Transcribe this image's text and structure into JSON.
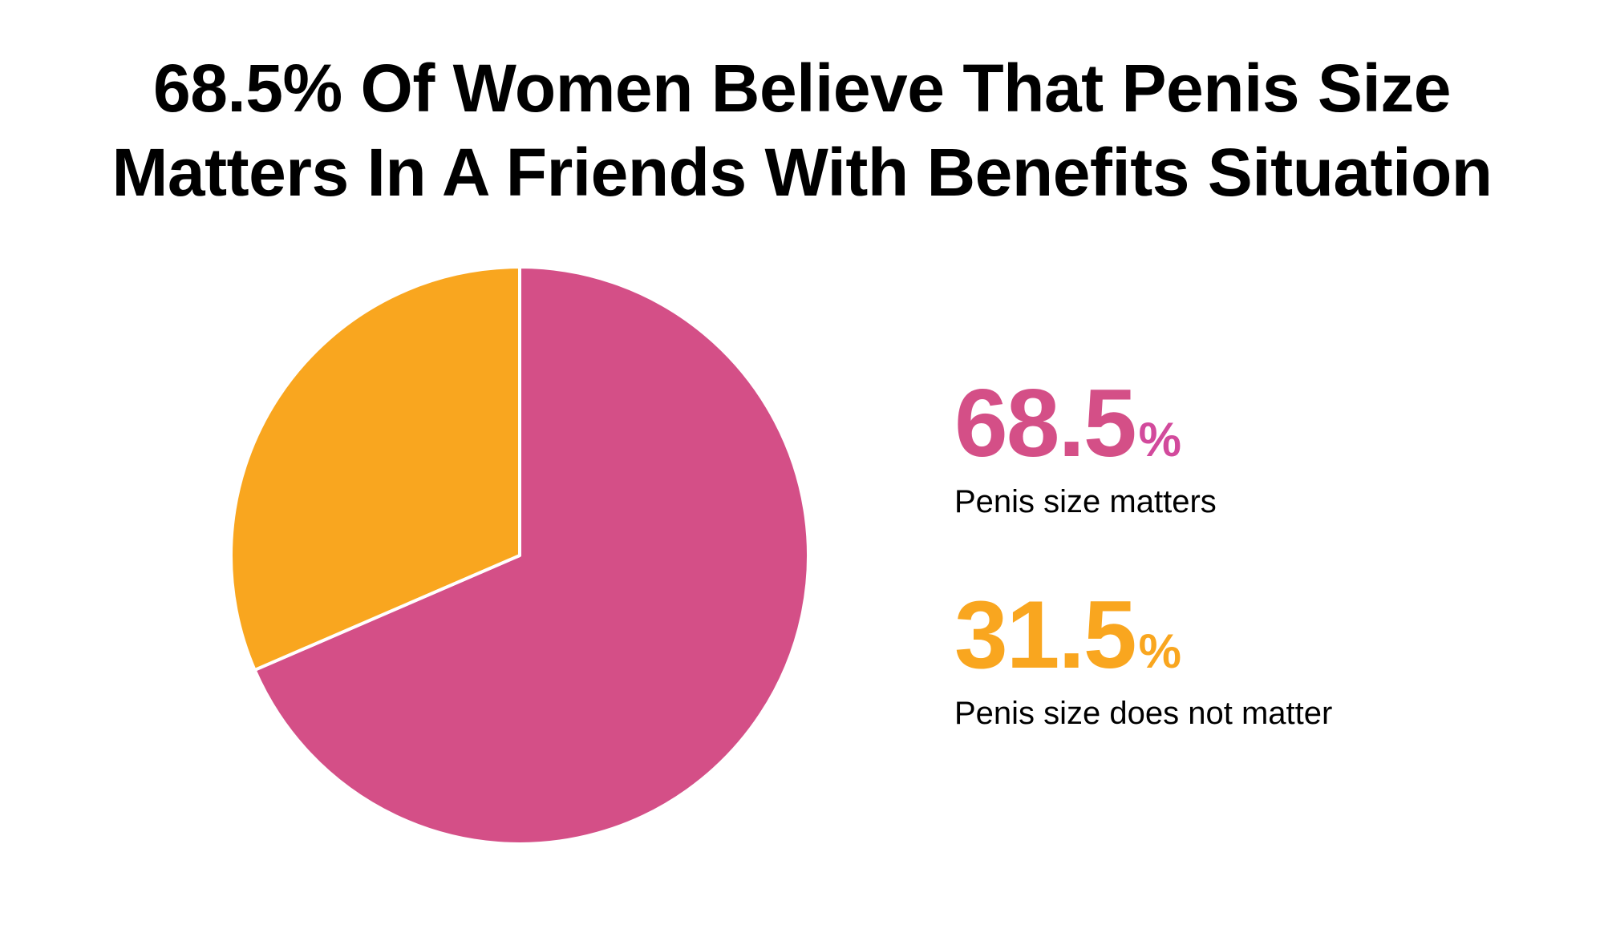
{
  "title": {
    "line1": "68.5% Of Women Believe That Penis Size",
    "line2": "Matters In A Friends With Benefits Situation"
  },
  "stats": [
    {
      "value": "68.5",
      "unit": "%",
      "label": "Penis size matters",
      "color": "#D44F87",
      "unit_color": "#D24A9C"
    },
    {
      "value": "31.5",
      "unit": "%",
      "label": "Penis size does not matter",
      "color": "#F9A61F",
      "unit_color": "#F9A61F"
    }
  ],
  "chart_data": {
    "type": "pie",
    "title": "68.5% Of Women Believe That Penis Size Matters In A Friends With Benefits Situation",
    "categories": [
      "Penis size matters",
      "Penis size does not matter"
    ],
    "values": [
      68.5,
      31.5
    ],
    "unit": "%",
    "colors": [
      "#D44F87",
      "#F9A61F"
    ],
    "start_angle": "12 o'clock",
    "direction": "Penis size matters clockwise from top; does not matter counterclockwise from top",
    "legend_position": "right",
    "slice_border_color": "#FFFFFF"
  }
}
